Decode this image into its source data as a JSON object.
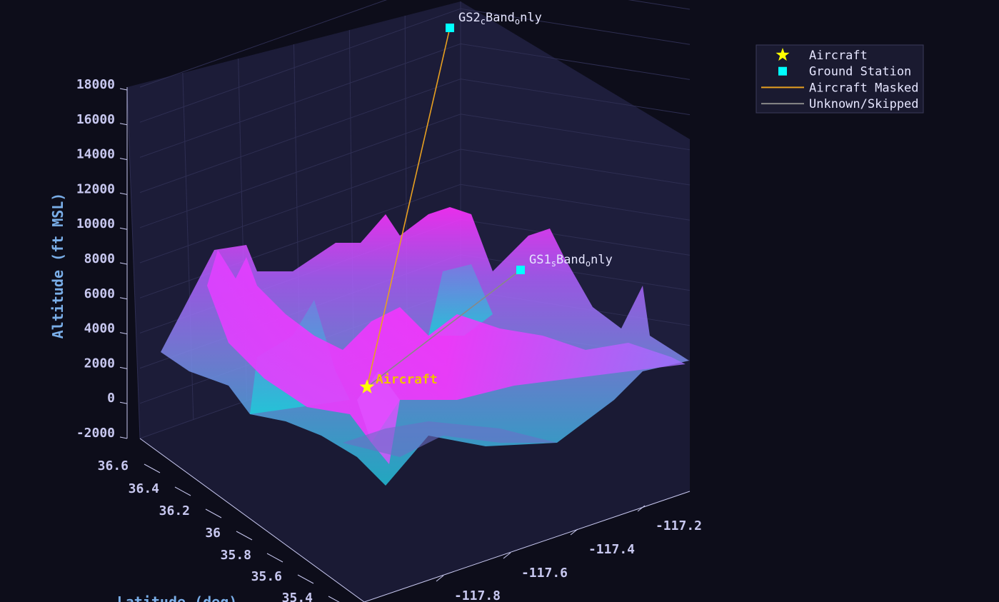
{
  "chart_data": {
    "type": "surface3d",
    "title": "",
    "axes": {
      "z": {
        "label": "Altitude (ft MSL)",
        "range": [
          -2000,
          18000
        ],
        "ticks": [
          "18000",
          "16000",
          "14000",
          "12000",
          "10000",
          "8000",
          "6000",
          "4000",
          "2000",
          "0",
          "-2000"
        ]
      },
      "y": {
        "label": "Latitude (deg)",
        "range": [
          35.3,
          36.7
        ],
        "ticks": [
          "36.6",
          "36.4",
          "36.2",
          "36",
          "35.8",
          "35.6",
          "35.4"
        ]
      },
      "x": {
        "label": "",
        "range": [
          -117.9,
          -117.1
        ],
        "ticks": [
          "-117.2",
          "-117.4",
          "-117.6",
          "-117.8"
        ]
      }
    },
    "grid": true,
    "points": {
      "aircraft": {
        "label": "Aircraft",
        "lon": -117.72,
        "lat": 35.55,
        "alt": 1200
      },
      "stations": [
        {
          "label_main": "GS2",
          "label_sub": "c",
          "label_mid": "Band",
          "label_sub2": "o",
          "label_end": "nly",
          "lon": -117.55,
          "lat": 36.45,
          "alt": 17800
        },
        {
          "label_main": "GS1",
          "label_sub": "s",
          "label_mid": "Band",
          "label_sub2": "o",
          "label_end": "nly",
          "lon": -117.25,
          "lat": 36.0,
          "alt": 7600
        }
      ]
    },
    "links": [
      {
        "from": "aircraft",
        "to": 0,
        "status": "Aircraft Masked",
        "color": "#e8a020"
      },
      {
        "from": "aircraft",
        "to": 1,
        "status": "Unknown/Skipped",
        "color": "#888888"
      }
    ],
    "legend": {
      "placement": "top-right",
      "entries": [
        {
          "name": "Aircraft",
          "symbol": "star",
          "color": "#ffff00"
        },
        {
          "name": "Ground Station",
          "symbol": "square",
          "color": "#00ffff"
        },
        {
          "name": "Aircraft Masked",
          "symbol": "line",
          "color": "#e8a020"
        },
        {
          "name": "Unknown/Skipped",
          "symbol": "line",
          "color": "#888888"
        }
      ]
    },
    "colorscale": [
      "#22c0d8",
      "#7a8ae8",
      "#b060ff",
      "#ff30ff"
    ]
  }
}
